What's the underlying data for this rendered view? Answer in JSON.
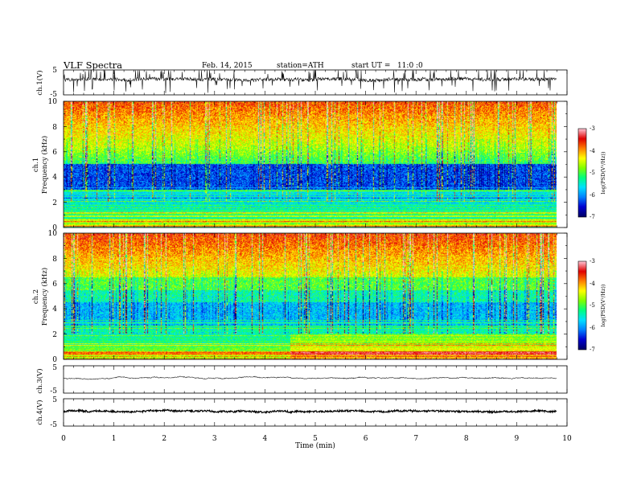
{
  "header": {
    "title": "VLF Spectra",
    "date": "Feb. 14, 2015",
    "station": "station=ATH",
    "start": "start UT =   11:0 :0"
  },
  "chart_data": [
    {
      "id": "ch1-waveform",
      "type": "line",
      "ylabel": "ch.1(V)",
      "ylim": [
        -5,
        5
      ],
      "yticks": [
        "5",
        "-5"
      ],
      "xlim": [
        0,
        10
      ],
      "data_x_end": 9.8,
      "baseline": 1.2,
      "noise_amplitude": 0.7,
      "spike_count": 120,
      "color": "#111111"
    },
    {
      "id": "ch1-spectrogram",
      "type": "heatmap",
      "ylabel": "ch.1",
      "ylabel2": "Frequency (kHz)",
      "ylim": [
        0,
        10
      ],
      "yticks": [
        "0",
        "2",
        "4",
        "6",
        "8",
        "10"
      ],
      "xlim": [
        0,
        10
      ],
      "data_x_end": 9.8,
      "colorbar": {
        "label": "log(PSD(V²/Hz))",
        "range": [
          -7,
          -3
        ],
        "ticks": [
          "-3",
          "-4",
          "-5",
          "-6",
          "-7"
        ]
      }
    },
    {
      "id": "ch2-spectrogram",
      "type": "heatmap",
      "ylabel": "ch.2",
      "ylabel2": "Frequency (kHz)",
      "ylim": [
        0,
        10
      ],
      "yticks": [
        "0",
        "2",
        "4",
        "6",
        "8",
        "10"
      ],
      "xlim": [
        0,
        10
      ],
      "data_x_end": 9.8,
      "colorbar": {
        "label": "log(PSD(V²/Hz))",
        "range": [
          -7,
          -3
        ],
        "ticks": [
          "-3",
          "-4",
          "-5",
          "-6",
          "-7"
        ]
      }
    },
    {
      "id": "ch3-waveform",
      "type": "line",
      "ylabel": "ch.3(V)",
      "ylim": [
        -5,
        5
      ],
      "yticks": [
        "5",
        "-5"
      ],
      "xlim": [
        0,
        10
      ],
      "data_x_end": 9.8,
      "baseline": 0.5,
      "noise_amplitude": 0.12,
      "spike_count": 0,
      "color": "#222222"
    },
    {
      "id": "ch4-waveform",
      "type": "line",
      "ylabel": "ch.4(V)",
      "ylim": [
        -5,
        5
      ],
      "yticks": [
        "5",
        "-5"
      ],
      "xlim": [
        0,
        10
      ],
      "data_x_end": 9.8,
      "baseline": 0.4,
      "noise_amplitude": 0.3,
      "spike_count": 0,
      "color": "#000000"
    }
  ],
  "x_axis": {
    "label": "Time (min)",
    "ticks": [
      "0",
      "1",
      "2",
      "3",
      "4",
      "5",
      "6",
      "7",
      "8",
      "9",
      "10"
    ]
  },
  "colors": {
    "colormap": [
      "#000066",
      "#0000d0",
      "#0080ff",
      "#00e0ff",
      "#00ff80",
      "#80ff00",
      "#ffff00",
      "#ff8000",
      "#e00000",
      "#ffc0d0"
    ]
  }
}
